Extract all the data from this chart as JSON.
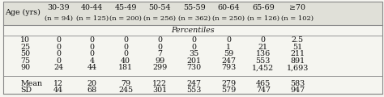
{
  "col_headers": [
    "Age (yrs)",
    "30-39\n(n = 94)",
    "40-44\n(n = 125)",
    "45-49\n(n = 200)",
    "50-54\n(n = 256)",
    "55-59\n(n = 362)",
    "60-64\n(n = 250)",
    "65-69\n(n = 126)",
    "≥70\n(n = 102)"
  ],
  "section_label": "Percentiles",
  "row_labels": [
    "10",
    "25",
    "50",
    "75",
    "90",
    "",
    "Mean",
    "SD"
  ],
  "data": [
    [
      "0",
      "0",
      "0",
      "0",
      "0",
      "0",
      "0",
      "2.5"
    ],
    [
      "0",
      "0",
      "0",
      "0",
      "0",
      "1",
      "21",
      "51"
    ],
    [
      "0",
      "0",
      "0",
      "7",
      "35",
      "59",
      "136",
      "211"
    ],
    [
      "0",
      "4",
      "40",
      "99",
      "201",
      "247",
      "553",
      "891"
    ],
    [
      "24",
      "44",
      "181",
      "299",
      "730",
      "793",
      "1,452",
      "1,693"
    ],
    [
      "",
      "",
      "",
      "",
      "",
      "",
      "",
      ""
    ],
    [
      "12",
      "20",
      "79",
      "122",
      "247",
      "279",
      "465",
      "583"
    ],
    [
      "44",
      "68",
      "245",
      "301",
      "553",
      "579",
      "747",
      "947"
    ]
  ],
  "background_color": "#f5f5f0",
  "header_bg": "#e0e0d8",
  "line_color": "#888888",
  "text_color": "#111111",
  "font_size": 6.8
}
